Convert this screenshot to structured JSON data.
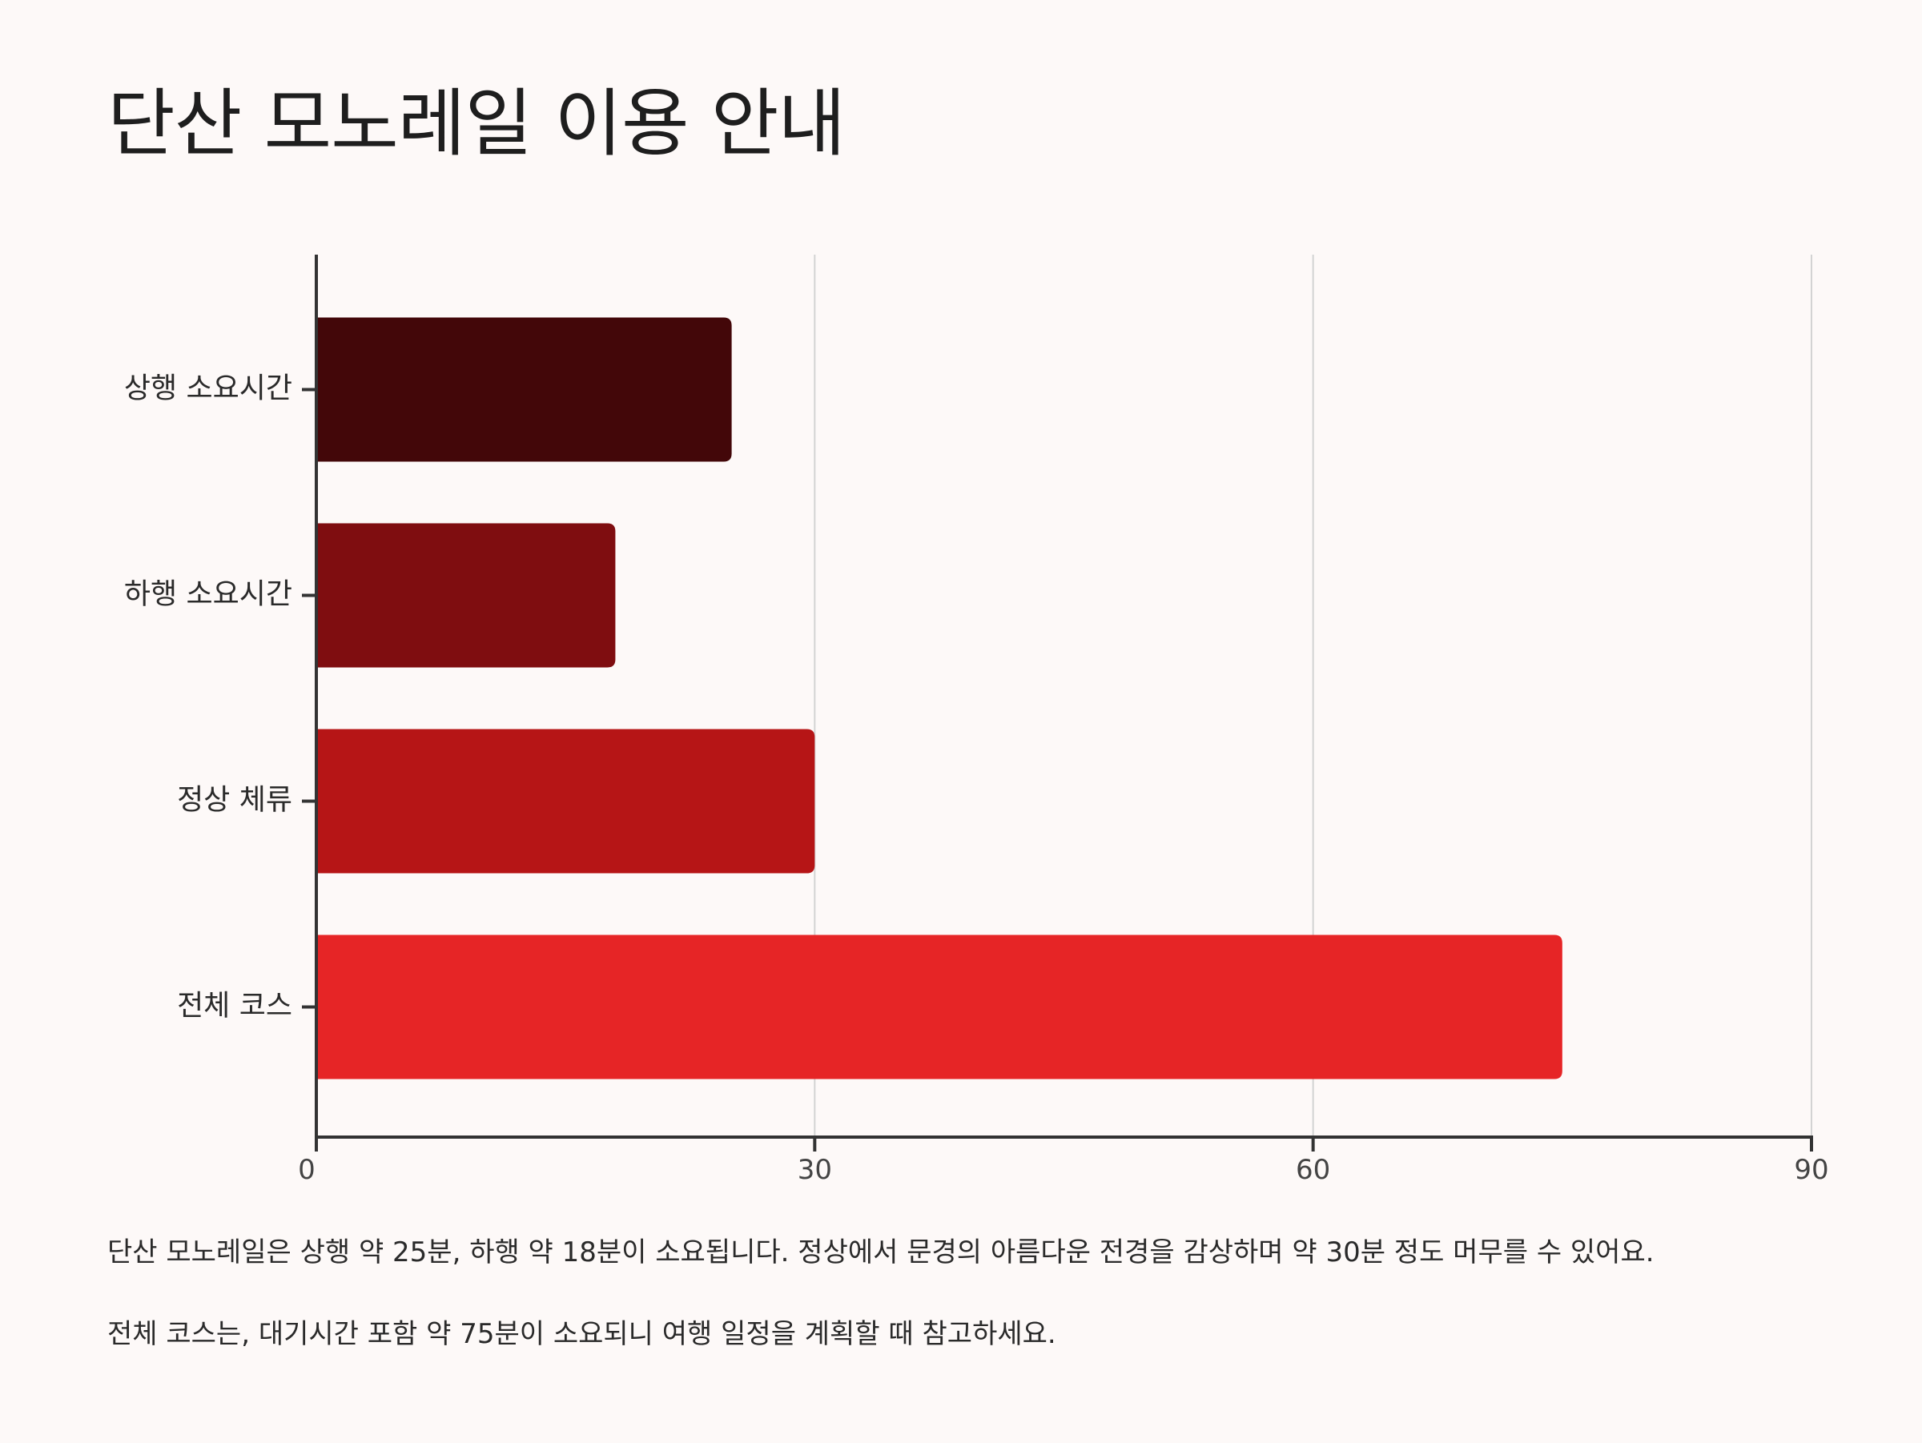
{
  "title": "단산 모노레일 이용 안내",
  "chart_data": {
    "type": "bar",
    "orientation": "horizontal",
    "categories": [
      "상행 소요시간",
      "하행 소요시간",
      "정상 체류",
      "전체 코스"
    ],
    "values": [
      25,
      18,
      30,
      75
    ],
    "colors": [
      "#430709",
      "#7f0d10",
      "#b61516",
      "#e62526"
    ],
    "xlim": [
      0,
      90
    ],
    "xticks": [
      0,
      30,
      60,
      90
    ],
    "xlabel": "",
    "ylabel": "",
    "grid": "vertical",
    "legend": "none"
  },
  "notes": [
    "단산 모노레일은 상행 약 25분, 하행 약 18분이 소요됩니다. 정상에서 문경의 아름다운 전경을 감상하며 약 30분 정도 머무를 수 있어요.",
    "전체 코스는, 대기시간 포함 약 75분이 소요되니 여행 일정을 계획할 때 참고하세요."
  ],
  "colors": {
    "background": "#fdf9f8",
    "axis": "#333333",
    "grid": "#d3d3d3"
  }
}
